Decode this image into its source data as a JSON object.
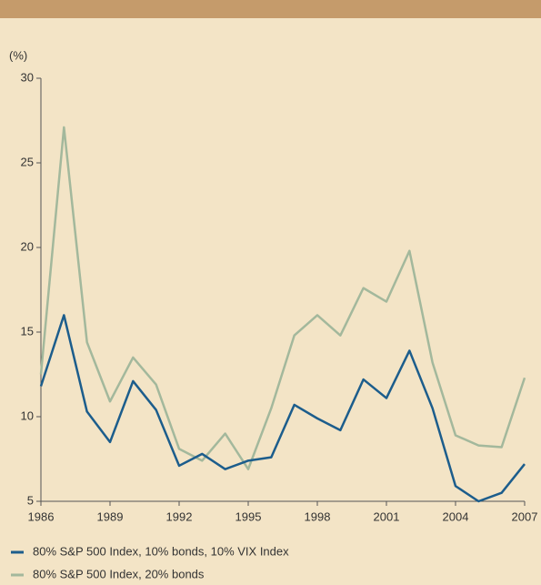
{
  "chart_data": {
    "type": "line",
    "y_unit_label": "(%)",
    "x": [
      1986,
      1987,
      1988,
      1989,
      1990,
      1991,
      1992,
      1993,
      1994,
      1995,
      1996,
      1997,
      1998,
      1999,
      2000,
      2001,
      2002,
      2003,
      2004,
      2005,
      2006,
      2007
    ],
    "series": [
      {
        "name": "80% S&P 500 Index, 10% bonds, 10% VIX Index",
        "color": "#1c5d8c",
        "values": [
          11.8,
          16.0,
          10.3,
          8.5,
          12.1,
          10.4,
          7.1,
          7.8,
          6.9,
          7.4,
          7.6,
          10.7,
          9.9,
          9.2,
          12.2,
          11.1,
          13.9,
          10.5,
          5.9,
          5.0,
          5.5,
          7.2
        ]
      },
      {
        "name": "80% S&P 500 Index, 20% bonds",
        "color": "#a3b89c",
        "values": [
          12.5,
          27.1,
          14.4,
          10.9,
          13.5,
          11.9,
          8.1,
          7.4,
          9.0,
          6.9,
          10.5,
          14.8,
          16.0,
          14.8,
          17.6,
          16.8,
          19.8,
          13.2,
          8.9,
          8.3,
          8.2,
          12.3
        ]
      }
    ],
    "xlim": [
      1986,
      2007
    ],
    "xticks": [
      1986,
      1989,
      1992,
      1995,
      1998,
      2001,
      2004,
      2007
    ],
    "ylim": [
      5,
      30
    ],
    "yticks": [
      5,
      10,
      15,
      20,
      25,
      30
    ],
    "legend": "bottom-left"
  }
}
